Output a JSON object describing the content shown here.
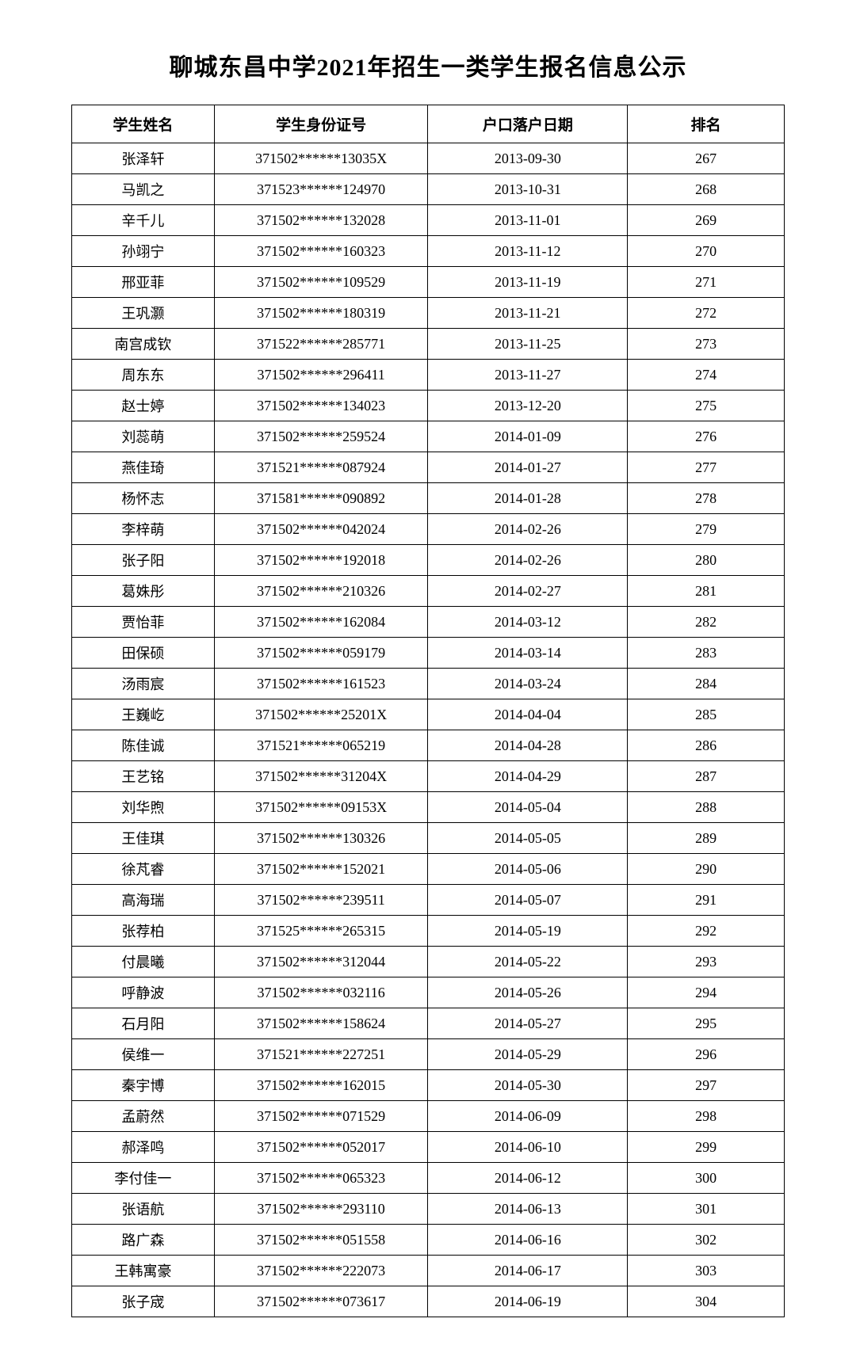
{
  "title": "聊城东昌中学2021年招生一类学生报名信息公示",
  "columns": [
    "学生姓名",
    "学生身份证号",
    "户口落户日期",
    "排名"
  ],
  "rows": [
    [
      "张泽轩",
      "371502******13035X",
      "2013-09-30",
      "267"
    ],
    [
      "马凯之",
      "371523******124970",
      "2013-10-31",
      "268"
    ],
    [
      "辛千儿",
      "371502******132028",
      "2013-11-01",
      "269"
    ],
    [
      "孙翊宁",
      "371502******160323",
      "2013-11-12",
      "270"
    ],
    [
      "邢亚菲",
      "371502******109529",
      "2013-11-19",
      "271"
    ],
    [
      "王巩灏",
      "371502******180319",
      "2013-11-21",
      "272"
    ],
    [
      "南宫成钦",
      "371522******285771",
      "2013-11-25",
      "273"
    ],
    [
      "周东东",
      "371502******296411",
      "2013-11-27",
      "274"
    ],
    [
      "赵士婷",
      "371502******134023",
      "2013-12-20",
      "275"
    ],
    [
      "刘蕊萌",
      "371502******259524",
      "2014-01-09",
      "276"
    ],
    [
      "燕佳琦",
      "371521******087924",
      "2014-01-27",
      "277"
    ],
    [
      "杨怀志",
      "371581******090892",
      "2014-01-28",
      "278"
    ],
    [
      "李梓萌",
      "371502******042024",
      "2014-02-26",
      "279"
    ],
    [
      "张子阳",
      "371502******192018",
      "2014-02-26",
      "280"
    ],
    [
      "葛姝彤",
      "371502******210326",
      "2014-02-27",
      "281"
    ],
    [
      "贾怡菲",
      "371502******162084",
      "2014-03-12",
      "282"
    ],
    [
      "田保硕",
      "371502******059179",
      "2014-03-14",
      "283"
    ],
    [
      "汤雨宸",
      "371502******161523",
      "2014-03-24",
      "284"
    ],
    [
      "王巍屹",
      "371502******25201X",
      "2014-04-04",
      "285"
    ],
    [
      "陈佳诚",
      "371521******065219",
      "2014-04-28",
      "286"
    ],
    [
      "王艺铭",
      "371502******31204X",
      "2014-04-29",
      "287"
    ],
    [
      "刘华煦",
      "371502******09153X",
      "2014-05-04",
      "288"
    ],
    [
      "王佳琪",
      "371502******130326",
      "2014-05-05",
      "289"
    ],
    [
      "徐芃睿",
      "371502******152021",
      "2014-05-06",
      "290"
    ],
    [
      "高海瑞",
      "371502******239511",
      "2014-05-07",
      "291"
    ],
    [
      "张荐柏",
      "371525******265315",
      "2014-05-19",
      "292"
    ],
    [
      "付晨曦",
      "371502******312044",
      "2014-05-22",
      "293"
    ],
    [
      "呼静波",
      "371502******032116",
      "2014-05-26",
      "294"
    ],
    [
      "石月阳",
      "371502******158624",
      "2014-05-27",
      "295"
    ],
    [
      "侯维一",
      "371521******227251",
      "2014-05-29",
      "296"
    ],
    [
      "秦宇博",
      "371502******162015",
      "2014-05-30",
      "297"
    ],
    [
      "孟蔚然",
      "371502******071529",
      "2014-06-09",
      "298"
    ],
    [
      "郝泽鸣",
      "371502******052017",
      "2014-06-10",
      "299"
    ],
    [
      "李付佳一",
      "371502******065323",
      "2014-06-12",
      "300"
    ],
    [
      "张语航",
      "371502******293110",
      "2014-06-13",
      "301"
    ],
    [
      "路广森",
      "371502******051558",
      "2014-06-16",
      "302"
    ],
    [
      "王韩寓豪",
      "371502******222073",
      "2014-06-17",
      "303"
    ],
    [
      "张子宬",
      "371502******073617",
      "2014-06-19",
      "304"
    ]
  ]
}
